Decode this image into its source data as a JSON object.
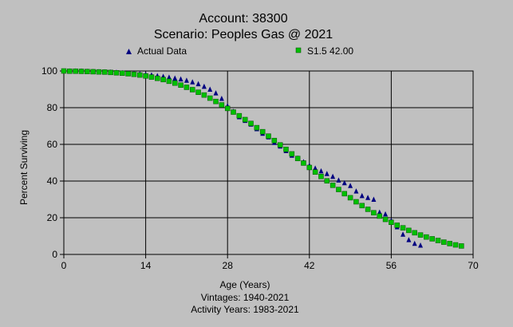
{
  "chart_data": {
    "type": "scatter",
    "title": "Account: 38300",
    "subtitle": "Scenario: Peoples Gas @ 2021",
    "xlabel": "Age (Years)",
    "ylabel": "Percent Surviving",
    "notes": [
      "Vintages: 1940-2021",
      "Activity Years: 1983-2021"
    ],
    "xlim": [
      0,
      70
    ],
    "ylim": [
      0,
      100
    ],
    "xticks": [
      0,
      14,
      28,
      42,
      56,
      70
    ],
    "yticks": [
      0,
      20,
      40,
      60,
      80,
      100
    ],
    "grid": true,
    "legend_position": "top",
    "series": [
      {
        "name": "Actual Data",
        "marker": "triangle",
        "color": "#000080",
        "x": [
          0,
          1,
          2,
          3,
          4,
          5,
          6,
          7,
          8,
          9,
          10,
          11,
          12,
          13,
          14,
          15,
          16,
          17,
          18,
          19,
          20,
          21,
          22,
          23,
          24,
          25,
          26,
          27,
          28,
          29,
          30,
          31,
          32,
          33,
          34,
          35,
          36,
          37,
          38,
          39,
          40,
          41,
          42,
          43,
          44,
          45,
          46,
          47,
          48,
          49,
          50,
          51,
          52,
          53,
          54,
          55,
          56,
          57,
          58,
          59,
          60,
          61
        ],
        "y": [
          100,
          100,
          100,
          100,
          99.8,
          99.7,
          99.6,
          99.5,
          99.4,
          99.3,
          99,
          98.8,
          98.6,
          98.4,
          98.1,
          97.8,
          97.4,
          97,
          96.6,
          96.1,
          95.6,
          94.9,
          94,
          93,
          91.6,
          90,
          88,
          85,
          81,
          78,
          75,
          73,
          71,
          68.5,
          66,
          64,
          61,
          59,
          56.5,
          54,
          52.5,
          50.5,
          48.5,
          47,
          45.5,
          44,
          42.5,
          40.5,
          39,
          37.5,
          34.5,
          32,
          31,
          30,
          23,
          22,
          18.5,
          15,
          11,
          8,
          6,
          5
        ]
      },
      {
        "name": "S1.5 42.00",
        "marker": "square",
        "color": "#00c000",
        "x": [
          0,
          1,
          2,
          3,
          4,
          5,
          6,
          7,
          8,
          9,
          10,
          11,
          12,
          13,
          14,
          15,
          16,
          17,
          18,
          19,
          20,
          21,
          22,
          23,
          24,
          25,
          26,
          27,
          28,
          29,
          30,
          31,
          32,
          33,
          34,
          35,
          36,
          37,
          38,
          39,
          40,
          41,
          42,
          43,
          44,
          45,
          46,
          47,
          48,
          49,
          50,
          51,
          52,
          53,
          54,
          55,
          56,
          57,
          58,
          59,
          60,
          61,
          62,
          63,
          64,
          65,
          66,
          67,
          68
        ],
        "y": [
          100,
          99.9,
          99.9,
          99.8,
          99.7,
          99.6,
          99.5,
          99.4,
          99.2,
          99,
          98.8,
          98.5,
          98.2,
          97.8,
          97.3,
          96.7,
          96,
          95.3,
          94.4,
          93.4,
          92.3,
          91.1,
          89.8,
          88.4,
          86.9,
          85.2,
          83.4,
          81.5,
          79.6,
          77.6,
          75.6,
          73.5,
          71.4,
          69.1,
          66.9,
          64.5,
          62.1,
          59.7,
          57.3,
          54.8,
          52.3,
          49.8,
          47.4,
          44.9,
          42.5,
          40.1,
          37.7,
          35.4,
          33.1,
          30.9,
          28.7,
          26.6,
          24.6,
          22.7,
          20.9,
          19.1,
          17.5,
          15.9,
          14.5,
          13.1,
          11.8,
          10.6,
          9.5,
          8.5,
          7.6,
          6.7,
          5.9,
          5.2,
          4.6
        ]
      }
    ]
  }
}
